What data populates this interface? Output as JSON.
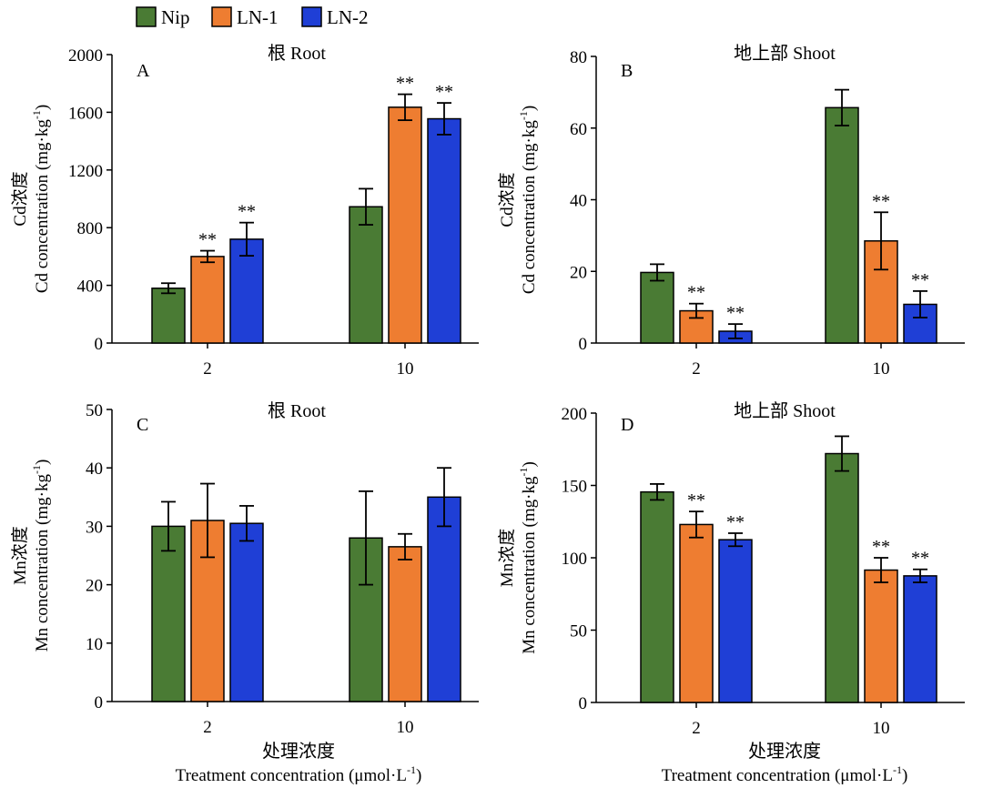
{
  "legend": [
    {
      "name": "Nip",
      "color": "#4a7b34"
    },
    {
      "name": "LN-1",
      "color": "#ee7d31"
    },
    {
      "name": "LN-2",
      "color": "#1f3fd6"
    }
  ],
  "colors": {
    "nip": "#4a7b34",
    "ln1": "#ee7d31",
    "ln2": "#1f3fd6",
    "axis": "#000000"
  },
  "x_title_cn": "处理浓度",
  "x_title_en": "Treatment concentration (μmol·L",
  "x_title_sup": "-1",
  "x_title_close": ")",
  "significance_mark": "**",
  "chart_data": [
    {
      "type": "bar",
      "panel": "A",
      "title": "根 Root",
      "ylabel_cn": "Cd浓度",
      "ylabel_en": "Cd concentration (mg·kg",
      "ylabel_sup": "-1",
      "ylabel_close": ")",
      "categories": [
        "2",
        "10"
      ],
      "ylim": [
        0,
        2000
      ],
      "yticks": [
        0,
        400,
        800,
        1200,
        1600,
        2000
      ],
      "series": [
        {
          "name": "Nip",
          "values": [
            380,
            945
          ],
          "errors": [
            35,
            125
          ],
          "sig": [
            false,
            false
          ]
        },
        {
          "name": "LN-1",
          "values": [
            600,
            1635
          ],
          "errors": [
            40,
            90
          ],
          "sig": [
            true,
            true
          ]
        },
        {
          "name": "LN-2",
          "values": [
            720,
            1555
          ],
          "errors": [
            115,
            110
          ],
          "sig": [
            true,
            true
          ]
        }
      ]
    },
    {
      "type": "bar",
      "panel": "B",
      "title": "地上部 Shoot",
      "ylabel_cn": "Cd浓度",
      "ylabel_en": "Cd concentration (mg·kg",
      "ylabel_sup": "-1",
      "ylabel_close": ")",
      "categories": [
        "2",
        "10"
      ],
      "ylim": [
        0,
        80
      ],
      "yticks": [
        0,
        20,
        40,
        60,
        80
      ],
      "series": [
        {
          "name": "Nip",
          "values": [
            19.7,
            65.7
          ],
          "errors": [
            2.3,
            5.0
          ],
          "sig": [
            false,
            false
          ]
        },
        {
          "name": "LN-1",
          "values": [
            9.0,
            28.5
          ],
          "errors": [
            2.0,
            8.0
          ],
          "sig": [
            true,
            true
          ]
        },
        {
          "name": "LN-2",
          "values": [
            3.3,
            10.8
          ],
          "errors": [
            2.0,
            3.7
          ],
          "sig": [
            true,
            true
          ]
        }
      ]
    },
    {
      "type": "bar",
      "panel": "C",
      "title": "根 Root",
      "ylabel_cn": "Mn浓度",
      "ylabel_en": "Mn concentration (mg·kg",
      "ylabel_sup": "-1",
      "ylabel_close": ")",
      "categories": [
        "2",
        "10"
      ],
      "ylim": [
        0,
        50
      ],
      "yticks": [
        0,
        10,
        20,
        30,
        40,
        50
      ],
      "series": [
        {
          "name": "Nip",
          "values": [
            30.0,
            28.0
          ],
          "errors": [
            4.2,
            8.0
          ],
          "sig": [
            false,
            false
          ]
        },
        {
          "name": "LN-1",
          "values": [
            31.0,
            26.5
          ],
          "errors": [
            6.3,
            2.2
          ],
          "sig": [
            false,
            false
          ]
        },
        {
          "name": "LN-2",
          "values": [
            30.5,
            35.0
          ],
          "errors": [
            3.0,
            5.0
          ],
          "sig": [
            false,
            false
          ]
        }
      ]
    },
    {
      "type": "bar",
      "panel": "D",
      "title": "地上部 Shoot",
      "ylabel_cn": "Mn浓度",
      "ylabel_en": "Mn concentration (mg·kg",
      "ylabel_sup": "-1",
      "ylabel_close": ")",
      "categories": [
        "2",
        "10"
      ],
      "ylim": [
        0,
        200
      ],
      "yticks": [
        0,
        50,
        100,
        150,
        200
      ],
      "series": [
        {
          "name": "Nip",
          "values": [
            145.5,
            172.0
          ],
          "errors": [
            5.5,
            12.0
          ],
          "sig": [
            false,
            false
          ]
        },
        {
          "name": "LN-1",
          "values": [
            123.0,
            91.5
          ],
          "errors": [
            9.0,
            8.5
          ],
          "sig": [
            true,
            true
          ]
        },
        {
          "name": "LN-2",
          "values": [
            112.5,
            87.5
          ],
          "errors": [
            4.5,
            4.5
          ],
          "sig": [
            true,
            true
          ]
        }
      ]
    }
  ]
}
